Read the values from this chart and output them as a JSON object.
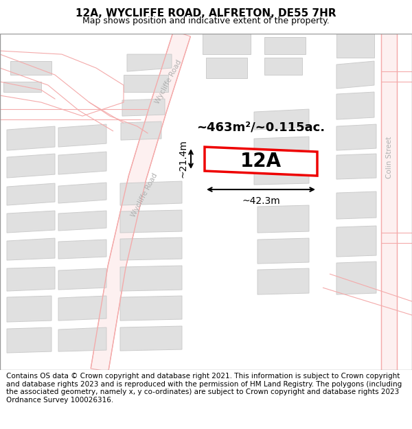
{
  "title": "12A, WYCLIFFE ROAD, ALFRETON, DE55 7HR",
  "subtitle": "Map shows position and indicative extent of the property.",
  "footer": "Contains OS data © Crown copyright and database right 2021. This information is subject to Crown copyright and database rights 2023 and is reproduced with the permission of HM Land Registry. The polygons (including the associated geometry, namely x, y co-ordinates) are subject to Crown copyright and database rights 2023 Ordnance Survey 100026316.",
  "map_bg": "#ffffff",
  "road_line_color": "#f4aaaa",
  "building_fill": "#e0e0e0",
  "building_edge": "#cccccc",
  "highlight_fill": "#ffffff",
  "highlight_edge": "#ee0000",
  "road_label_color": "#b0b0b0",
  "street_label_1": "Wycliffe Road",
  "street_label_2": "Colin Street",
  "property_label": "12A",
  "area_label": "~463m²/~0.115ac.",
  "width_label": "~42.3m",
  "height_label": "~21.4m",
  "title_fontsize": 11,
  "subtitle_fontsize": 9,
  "footer_fontsize": 7.5
}
